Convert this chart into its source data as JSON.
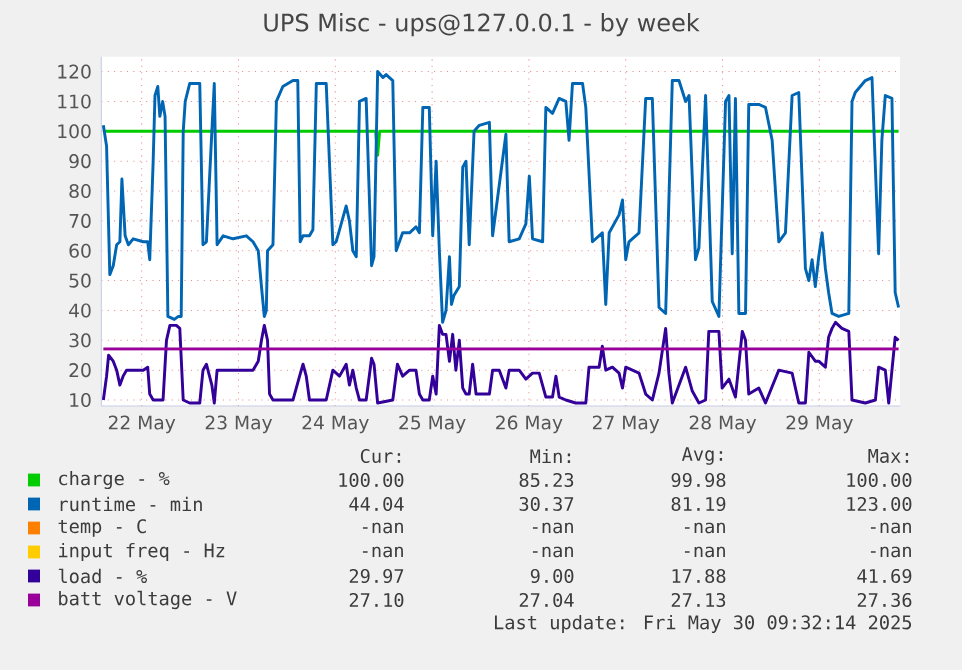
{
  "chart_data": {
    "type": "line",
    "title": "UPS Misc - ups@127.0.0.1 - by week",
    "xlim": [
      "2025-05-22T02:00",
      "2025-05-30T08:00"
    ],
    "xticks": [
      {
        "value": "2025-05-22T12:00",
        "label": "22 May"
      },
      {
        "value": "2025-05-23T12:00",
        "label": "23 May"
      },
      {
        "value": "2025-05-24T12:00",
        "label": "24 May"
      },
      {
        "value": "2025-05-25T12:00",
        "label": "25 May"
      },
      {
        "value": "2025-05-26T12:00",
        "label": "26 May"
      },
      {
        "value": "2025-05-27T12:00",
        "label": "27 May"
      },
      {
        "value": "2025-05-28T12:00",
        "label": "28 May"
      },
      {
        "value": "2025-05-29T12:00",
        "label": "29 May"
      }
    ],
    "ylim": [
      8,
      125
    ],
    "yticks": [
      10,
      20,
      30,
      40,
      50,
      60,
      70,
      80,
      90,
      100,
      110,
      120
    ],
    "grid": true,
    "legend": "bottom",
    "series": [
      {
        "name": "charge - %",
        "color": "#00cc00",
        "x": [
          "2025-05-22T02:30",
          "2025-05-24T22:00",
          "2025-05-24T22:30",
          "2025-05-24T23:00",
          "2025-05-30T07:39"
        ],
        "values": [
          100,
          100,
          92,
          100,
          100
        ]
      },
      {
        "name": "runtime - min",
        "color": "#0066b3",
        "x": [
          "2025-05-22T02:30",
          "2025-05-22T03:18",
          "2025-05-22T04:06",
          "2025-05-22T04:57",
          "2025-05-22T05:48",
          "2025-05-22T06:36",
          "2025-05-22T07:06",
          "2025-05-22T07:54",
          "2025-05-22T08:42",
          "2025-05-22T09:54",
          "2025-05-22T12:24",
          "2025-05-22T13:30",
          "2025-05-22T14:00",
          "2025-05-22T14:51",
          "2025-05-22T15:18",
          "2025-05-22T16:00",
          "2025-05-22T16:30",
          "2025-05-22T17:12",
          "2025-05-22T17:48",
          "2025-05-22T18:30",
          "2025-05-22T20:06",
          "2025-05-22T21:06",
          "2025-05-22T21:48",
          "2025-05-22T22:18",
          "2025-05-22T22:48",
          "2025-05-22T23:54",
          "2025-05-23T02:24",
          "2025-05-23T03:12",
          "2025-05-23T04:03",
          "2025-05-23T05:24",
          "2025-05-23T06:00",
          "2025-05-23T06:42",
          "2025-05-23T08:12",
          "2025-05-23T10:39",
          "2025-05-23T13:57",
          "2025-05-23T15:36",
          "2025-05-23T16:54",
          "2025-05-23T17:42",
          "2025-05-23T18:24",
          "2025-05-23T18:54",
          "2025-05-23T19:12",
          "2025-05-23T20:33",
          "2025-05-23T21:24",
          "2025-05-23T23:00",
          "2025-05-24T01:30",
          "2025-05-24T02:42",
          "2025-05-24T03:18",
          "2025-05-24T04:00",
          "2025-05-24T05:36",
          "2025-05-24T06:27",
          "2025-05-24T07:18",
          "2025-05-24T09:45",
          "2025-05-24T11:24",
          "2025-05-24T12:12",
          "2025-05-24T13:03",
          "2025-05-24T14:42",
          "2025-05-24T15:30",
          "2025-05-24T16:21",
          "2025-05-24T17:12",
          "2025-05-24T18:00",
          "2025-05-24T19:39",
          "2025-05-24T21:00",
          "2025-05-24T21:36",
          "2025-05-24T22:30",
          "2025-05-24T23:48",
          "2025-05-25T00:36",
          "2025-05-25T02:15",
          "2025-05-25T03:06",
          "2025-05-25T03:54",
          "2025-05-25T04:42",
          "2025-05-25T06:24",
          "2025-05-25T08:00",
          "2025-05-25T08:51",
          "2025-05-25T09:42",
          "2025-05-25T11:18",
          "2025-05-25T12:09",
          "2025-05-25T13:00",
          "2025-05-25T13:48",
          "2025-05-25T14:36",
          "2025-05-25T15:27",
          "2025-05-25T16:18",
          "2025-05-25T16:48",
          "2025-05-25T17:24",
          "2025-05-25T18:45",
          "2025-05-25T19:36",
          "2025-05-25T20:24",
          "2025-05-25T21:12",
          "2025-05-25T22:24",
          "2025-05-25T23:42",
          "2025-05-26T02:12",
          "2025-05-26T03:00",
          "2025-05-26T06:18",
          "2025-05-26T07:06",
          "2025-05-26T09:36",
          "2025-05-26T11:15",
          "2025-05-26T12:06",
          "2025-05-26T12:54",
          "2025-05-26T15:24",
          "2025-05-26T16:12",
          "2025-05-26T17:51",
          "2025-05-26T19:30",
          "2025-05-26T21:09",
          "2025-05-26T21:57",
          "2025-05-26T22:48",
          "2025-05-27T01:18",
          "2025-05-27T02:06",
          "2025-05-27T03:45",
          "2025-05-27T06:12",
          "2025-05-27T07:03",
          "2025-05-27T07:54",
          "2025-05-27T10:21",
          "2025-05-27T11:12",
          "2025-05-27T12:00",
          "2025-05-27T12:48",
          "2025-05-27T15:18",
          "2025-05-27T16:57",
          "2025-05-27T18:36",
          "2025-05-27T20:15",
          "2025-05-27T21:54",
          "2025-05-27T23:33",
          "2025-05-28T01:12",
          "2025-05-28T02:51",
          "2025-05-28T03:42",
          "2025-05-28T05:18",
          "2025-05-28T06:09",
          "2025-05-28T07:48",
          "2025-05-28T09:27",
          "2025-05-28T11:06",
          "2025-05-28T12:45",
          "2025-05-28T13:36",
          "2025-05-28T14:24",
          "2025-05-28T15:12",
          "2025-05-28T16:03",
          "2025-05-28T17:42",
          "2025-05-28T18:30",
          "2025-05-28T21:00",
          "2025-05-28T22:39",
          "2025-05-29T00:18",
          "2025-05-29T01:57",
          "2025-05-29T03:36",
          "2025-05-29T05:15",
          "2025-05-29T06:54",
          "2025-05-29T08:33",
          "2025-05-29T09:24",
          "2025-05-29T10:12",
          "2025-05-29T11:00",
          "2025-05-29T11:51",
          "2025-05-29T12:42",
          "2025-05-29T13:30",
          "2025-05-29T14:18",
          "2025-05-29T15:09",
          "2025-05-29T16:48",
          "2025-05-29T19:18",
          "2025-05-29T20:06",
          "2025-05-29T20:54",
          "2025-05-29T23:24",
          "2025-05-30T01:03",
          "2025-05-30T02:42",
          "2025-05-30T03:30",
          "2025-05-30T04:21",
          "2025-05-30T06:00",
          "2025-05-30T06:48",
          "2025-05-30T07:39"
        ],
        "values": [
          102,
          95,
          52,
          55,
          62,
          63,
          84,
          65,
          62,
          64,
          63,
          63,
          57,
          90,
          112,
          115,
          105,
          110,
          105,
          38,
          37,
          38,
          38,
          100,
          110,
          116,
          116,
          62,
          63,
          100,
          116,
          62,
          65,
          64,
          65,
          63,
          60,
          48,
          38,
          40,
          60,
          62,
          110,
          115,
          117,
          117,
          63,
          65,
          65,
          67,
          116,
          116,
          62,
          63,
          67,
          75,
          70,
          60,
          58,
          110,
          111,
          55,
          58,
          120,
          118,
          119,
          117,
          60,
          63,
          66,
          66,
          68,
          66,
          108,
          108,
          65,
          90,
          60,
          36,
          40,
          58,
          42,
          45,
          48,
          88,
          90,
          62,
          100,
          102,
          103,
          65,
          99,
          63,
          64,
          69,
          85,
          64,
          63,
          108,
          106,
          111,
          110,
          97,
          116,
          116,
          108,
          63,
          66,
          42,
          66,
          72,
          77,
          57,
          63,
          66,
          111,
          111,
          41,
          39,
          117,
          117,
          110,
          112,
          57,
          61,
          112,
          43,
          38,
          110,
          112,
          59,
          111,
          39,
          39,
          109,
          109,
          108,
          97,
          63,
          66,
          112,
          113,
          54,
          50,
          57,
          48,
          58,
          66,
          54,
          46,
          39,
          38,
          39,
          110,
          113,
          117,
          118,
          59,
          97,
          112,
          111,
          46,
          41
        ]
      },
      {
        "name": "temp - C",
        "color": "#ff8000"
      },
      {
        "name": "input freq - Hz",
        "color": "#ffcc00"
      },
      {
        "name": "load - %",
        "color": "#330099",
        "x": [
          "2025-05-22T02:30",
          "2025-05-22T03:18",
          "2025-05-22T03:48",
          "2025-05-22T04:57",
          "2025-05-22T05:48",
          "2025-05-22T06:36",
          "2025-05-22T07:24",
          "2025-05-22T08:15",
          "2025-05-22T12:24",
          "2025-05-22T13:30",
          "2025-05-22T14:00",
          "2025-05-22T14:51",
          "2025-05-22T17:18",
          "2025-05-22T18:09",
          "2025-05-22T19:00",
          "2025-05-22T20:36",
          "2025-05-22T21:27",
          "2025-05-22T22:18",
          "2025-05-22T23:54",
          "2025-05-23T02:24",
          "2025-05-23T03:12",
          "2025-05-23T04:03",
          "2025-05-23T05:24",
          "2025-05-23T06:00",
          "2025-05-23T06:42",
          "2025-05-23T15:36",
          "2025-05-23T16:54",
          "2025-05-23T17:42",
          "2025-05-23T18:24",
          "2025-05-23T19:12",
          "2025-05-23T19:42",
          "2025-05-23T20:33",
          "2025-05-24T01:30",
          "2025-05-24T03:09",
          "2025-05-24T04:00",
          "2025-05-24T04:48",
          "2025-05-24T05:36",
          "2025-05-24T09:45",
          "2025-05-24T11:24",
          "2025-05-24T13:03",
          "2025-05-24T14:42",
          "2025-05-24T15:30",
          "2025-05-24T16:21",
          "2025-05-24T17:12",
          "2025-05-24T18:00",
          "2025-05-24T19:39",
          "2025-05-24T21:00",
          "2025-05-24T21:36",
          "2025-05-24T22:30",
          "2025-05-25T02:15",
          "2025-05-25T03:24",
          "2025-05-25T04:42",
          "2025-05-25T06:24",
          "2025-05-25T08:00",
          "2025-05-25T08:51",
          "2025-05-25T09:42",
          "2025-05-25T11:18",
          "2025-05-25T12:09",
          "2025-05-25T13:00",
          "2025-05-25T13:48",
          "2025-05-25T14:36",
          "2025-05-25T15:27",
          "2025-05-25T16:18",
          "2025-05-25T17:06",
          "2025-05-25T17:54",
          "2025-05-25T18:45",
          "2025-05-25T19:36",
          "2025-05-25T20:24",
          "2025-05-25T21:12",
          "2025-05-25T22:03",
          "2025-05-25T22:54",
          "2025-05-26T02:12",
          "2025-05-26T03:00",
          "2025-05-26T04:39",
          "2025-05-26T06:18",
          "2025-05-26T07:06",
          "2025-05-26T09:36",
          "2025-05-26T11:15",
          "2025-05-26T12:54",
          "2025-05-26T14:33",
          "2025-05-26T16:12",
          "2025-05-26T17:51",
          "2025-05-26T18:42",
          "2025-05-26T19:30",
          "2025-05-26T21:09",
          "2025-05-26T23:36",
          "2025-05-27T02:06",
          "2025-05-27T02:54",
          "2025-05-27T05:24",
          "2025-05-27T06:12",
          "2025-05-27T07:03",
          "2025-05-27T08:42",
          "2025-05-27T10:21",
          "2025-05-27T11:12",
          "2025-05-27T12:00",
          "2025-05-27T15:18",
          "2025-05-27T16:57",
          "2025-05-27T18:36",
          "2025-05-27T20:15",
          "2025-05-27T21:54",
          "2025-05-27T22:42",
          "2025-05-27T23:33",
          "2025-05-28T02:51",
          "2025-05-28T04:30",
          "2025-05-28T06:09",
          "2025-05-28T07:48",
          "2025-05-28T08:36",
          "2025-05-28T11:06",
          "2025-05-28T11:54",
          "2025-05-28T13:36",
          "2025-05-28T15:12",
          "2025-05-28T16:54",
          "2025-05-28T17:42",
          "2025-05-28T18:30",
          "2025-05-28T21:00",
          "2025-05-28T22:39",
          "2025-05-29T01:57",
          "2025-05-29T05:15",
          "2025-05-29T06:54",
          "2025-05-29T08:33",
          "2025-05-29T09:24",
          "2025-05-29T11:00",
          "2025-05-29T11:51",
          "2025-05-29T13:30",
          "2025-05-29T14:18",
          "2025-05-29T15:09",
          "2025-05-29T16:00",
          "2025-05-29T17:36",
          "2025-05-29T19:18",
          "2025-05-29T20:06",
          "2025-05-29T23:24",
          "2025-05-30T01:54",
          "2025-05-30T02:42",
          "2025-05-30T04:21",
          "2025-05-30T05:12",
          "2025-05-30T06:48",
          "2025-05-30T07:39"
        ],
        "values": [
          10,
          18,
          25,
          23,
          20,
          15,
          18,
          20,
          20,
          21,
          12,
          10,
          10,
          30,
          35,
          35,
          34,
          10,
          9,
          9,
          20,
          22,
          15,
          9,
          20,
          20,
          23,
          30,
          35,
          30,
          12,
          10,
          10,
          18,
          22,
          18,
          10,
          10,
          20,
          18,
          22,
          15,
          20,
          14,
          10,
          10,
          24,
          22,
          9,
          10,
          22,
          18,
          20,
          20,
          12,
          10,
          10,
          18,
          12,
          35,
          32,
          32,
          23,
          32,
          20,
          30,
          14,
          12,
          12,
          22,
          12,
          12,
          20,
          20,
          14,
          20,
          20,
          17,
          19,
          19,
          11,
          11,
          18,
          11,
          10,
          9,
          9,
          21,
          21,
          28,
          20,
          21,
          19,
          14,
          21,
          19,
          12,
          10,
          19,
          34,
          19,
          9,
          21,
          13,
          9,
          10,
          33,
          33,
          14,
          17,
          11,
          33,
          30,
          12,
          14,
          9,
          20,
          19,
          9,
          9,
          26,
          23,
          23,
          21,
          31,
          34,
          36,
          34,
          33,
          10,
          9,
          10,
          21,
          20,
          9,
          31,
          30
        ]
      },
      {
        "name": "batt voltage - V",
        "color": "#990099",
        "x": [
          "2025-05-22T02:30",
          "2025-05-30T07:39"
        ],
        "values": [
          27.1,
          27.1
        ]
      }
    ],
    "annotations": [
      "Cur:",
      "Min:",
      "Avg:",
      "Max:",
      "100.00",
      "85.23",
      "99.98",
      "100.00",
      "44.04",
      "30.37",
      "81.19",
      "123.00",
      "-nan",
      "-nan",
      "-nan",
      "-nan",
      "-nan",
      "-nan",
      "-nan",
      "-nan",
      "29.97",
      "9.00",
      "17.88",
      "41.69",
      "27.10",
      "27.04",
      "27.13",
      "27.36",
      "Last update: Fri May 30 09:32:14 2025"
    ]
  }
}
